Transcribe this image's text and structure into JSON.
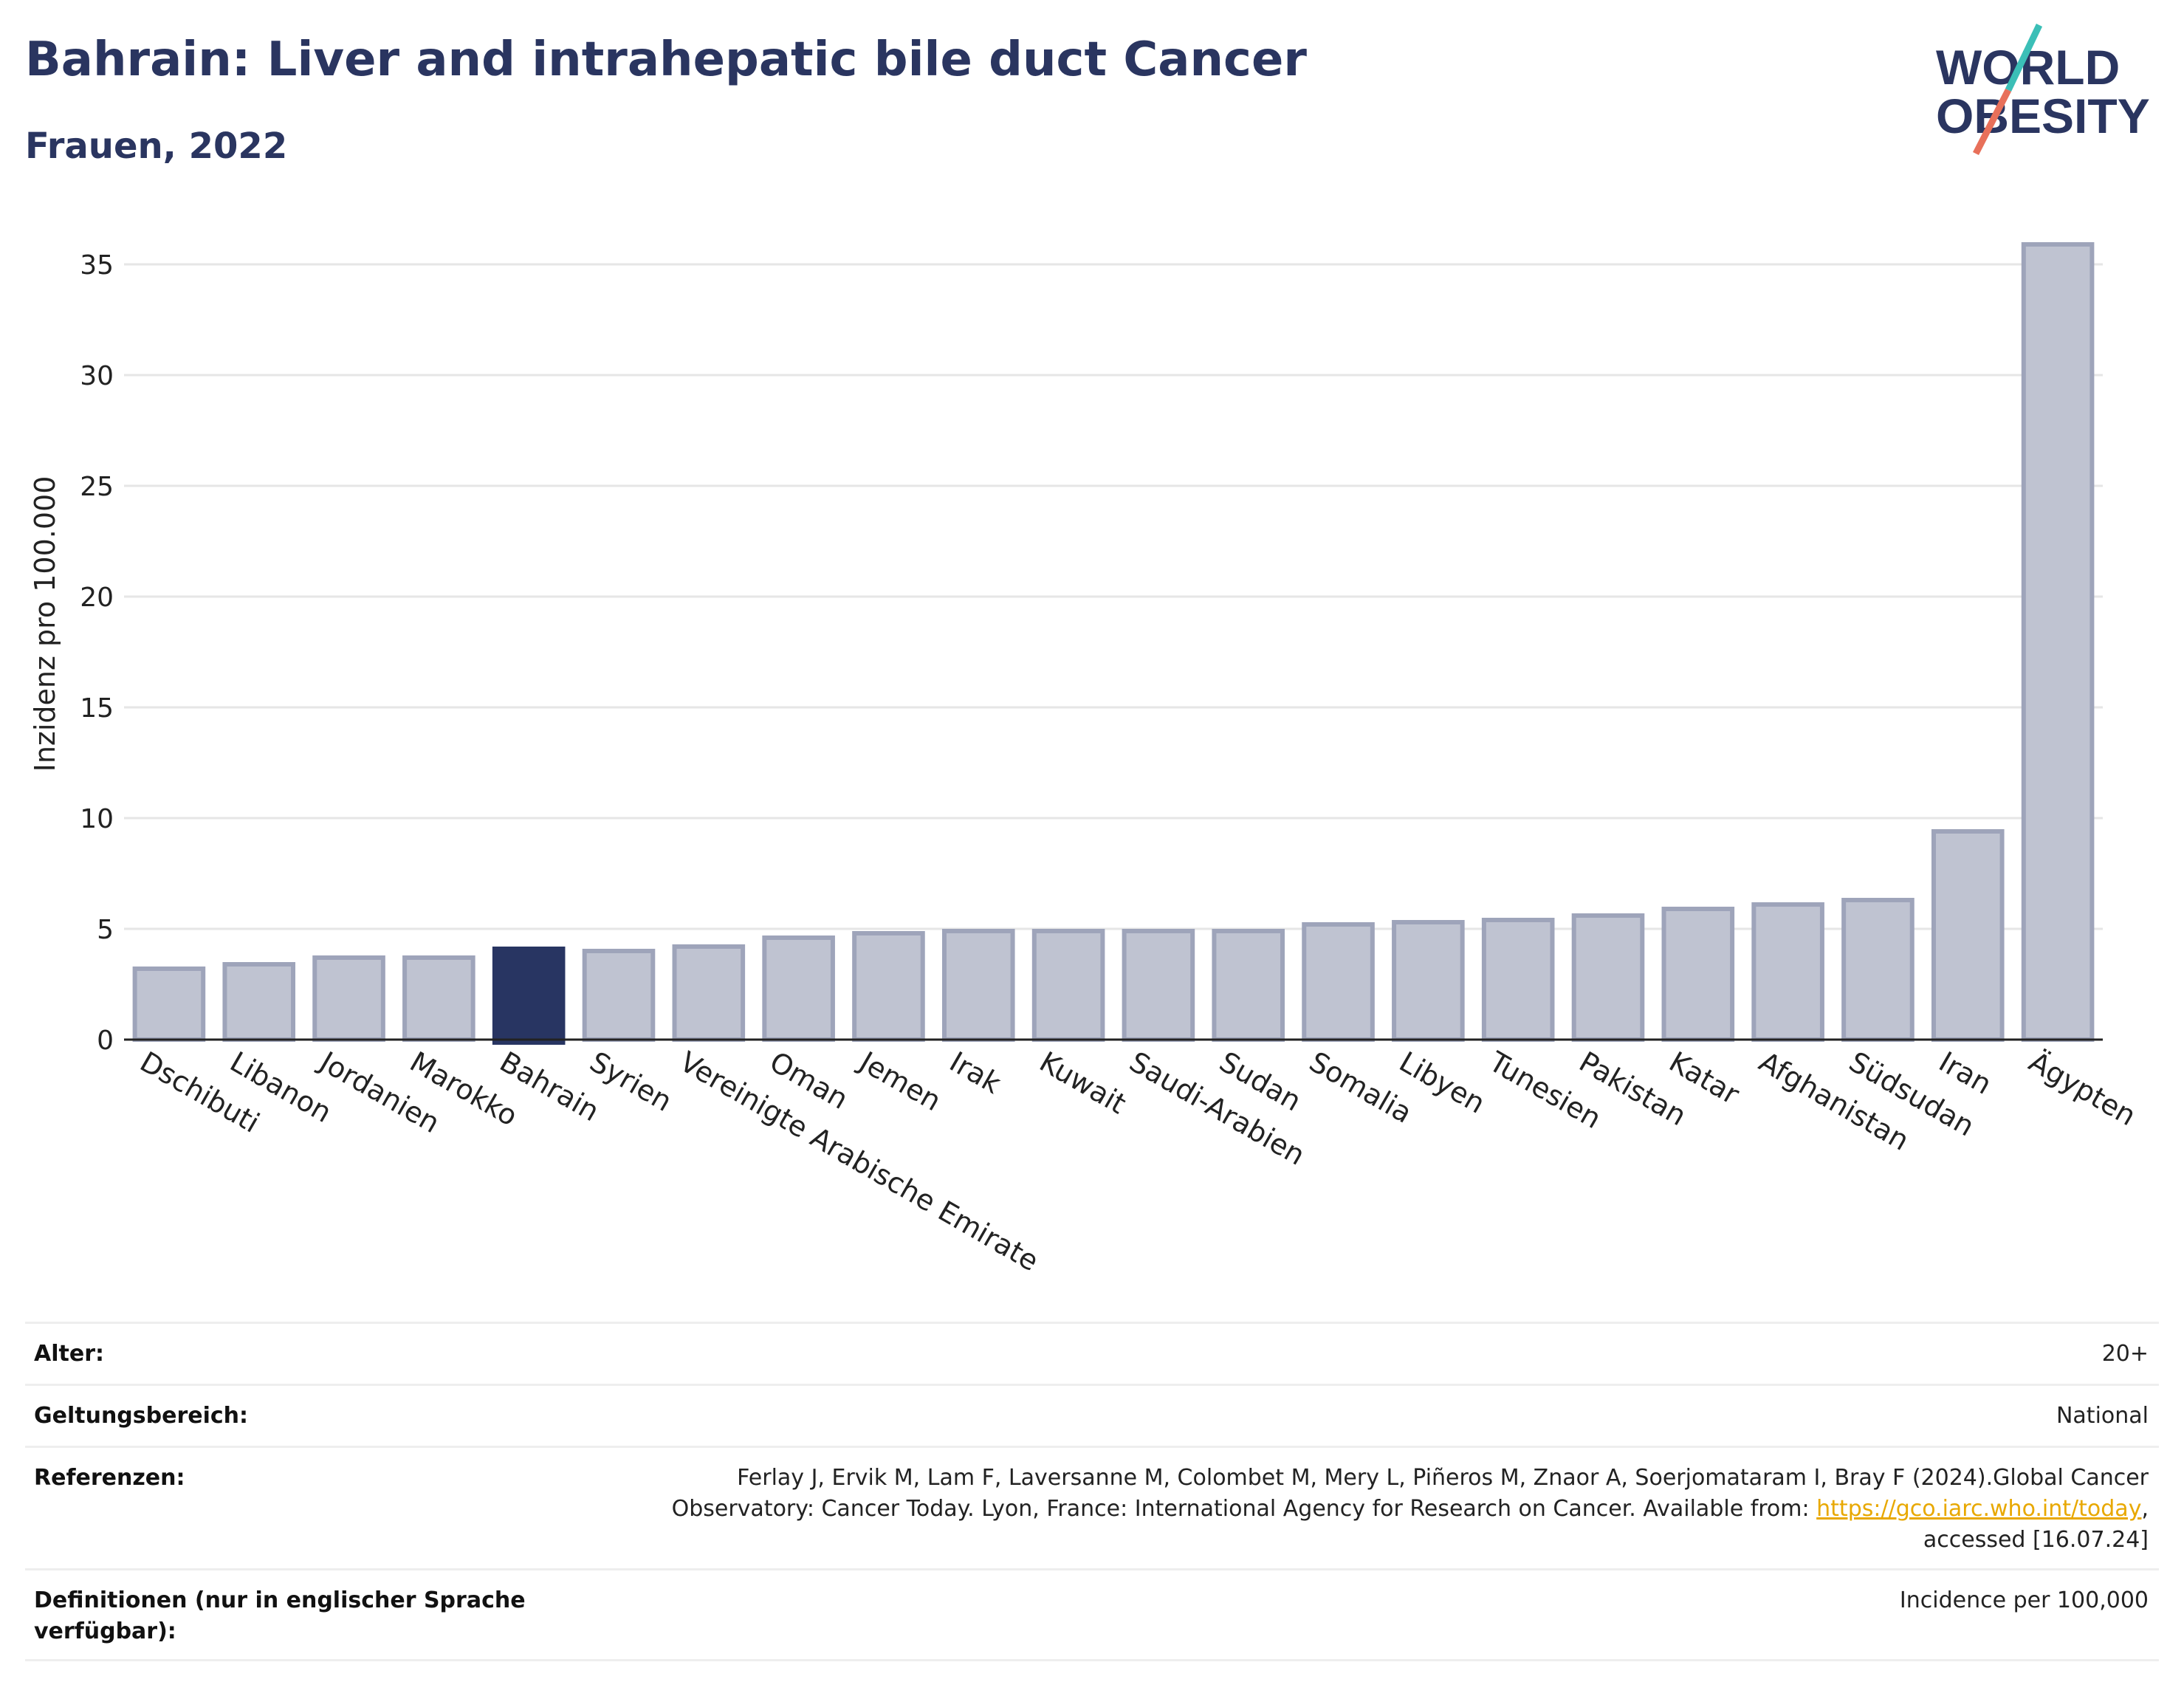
{
  "header": {
    "title": "Bahrain: Liver and intrahepatic bile duct Cancer",
    "subtitle": "Frauen, 2022"
  },
  "logo": {
    "line1": "WORLD",
    "line2": "OBESITY",
    "colors": {
      "text": "#2a3560",
      "slash_teal": "#3bbfb7",
      "slash_red": "#e8705a"
    }
  },
  "colors": {
    "bar_default": "#bfc3d1",
    "bar_stroke": "#9ea4ba",
    "bar_highlight": "#283562",
    "grid": "#e6e6e6",
    "axis": "#222222"
  },
  "chart_data": {
    "type": "bar",
    "ylabel": "Inzidenz pro 100.000",
    "xlabel": "",
    "ylim": [
      0,
      37
    ],
    "yticks": [
      0,
      5,
      10,
      15,
      20,
      25,
      30,
      35
    ],
    "grid": true,
    "highlight": "Bahrain",
    "categories": [
      "Dschibuti",
      "Libanon",
      "Jordanien",
      "Marokko",
      "Bahrain",
      "Syrien",
      "Vereinigte Arabische Emirate",
      "Oman",
      "Jemen",
      "Irak",
      "Kuwait",
      "Saudi-Arabien",
      "Sudan",
      "Somalia",
      "Libyen",
      "Tunesien",
      "Pakistan",
      "Katar",
      "Afghanistan",
      "Südsudan",
      "Iran",
      "Ägypten"
    ],
    "values": [
      3.2,
      3.4,
      3.7,
      3.7,
      4.1,
      4.0,
      4.2,
      4.6,
      4.8,
      4.9,
      4.9,
      4.9,
      4.9,
      5.2,
      5.3,
      5.4,
      5.6,
      5.9,
      6.1,
      6.3,
      9.4,
      35.9
    ]
  },
  "meta": [
    {
      "key": "Alter:",
      "value": "20+"
    },
    {
      "key": "Geltungsbereich:",
      "value": "National"
    },
    {
      "key": "Referenzen:",
      "value_pre": "Ferlay J, Ervik M, Lam F, Laversanne M, Colombet M, Mery L, Piñeros M, Znaor A, Soerjomataram I, Bray F (2024).Global Cancer Observatory: Cancer Today. Lyon, France: International Agency for Research on Cancer. Available from: ",
      "link": "https://gco.iarc.who.int/today",
      "value_post": ", accessed [16.07.24]"
    },
    {
      "key": "Definitionen (nur in englischer Sprache verfügbar):",
      "value": "Incidence per 100,000"
    }
  ]
}
